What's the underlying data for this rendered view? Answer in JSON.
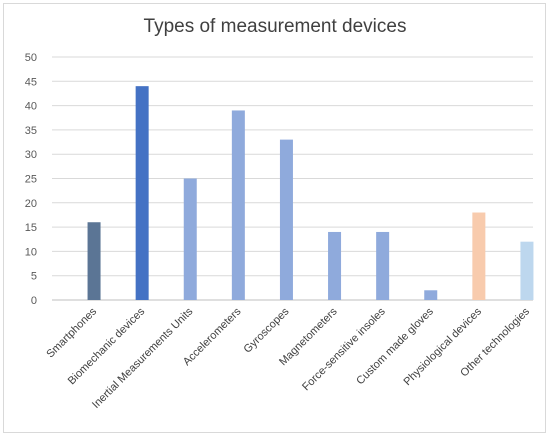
{
  "chart_data": {
    "type": "bar",
    "title": "Types of measurement devices",
    "xlabel": "",
    "ylabel": "",
    "ylim": [
      0,
      50
    ],
    "yticks": [
      0,
      5,
      10,
      15,
      20,
      25,
      30,
      35,
      40,
      45,
      50
    ],
    "grid": true,
    "legend": "none",
    "categories": [
      "Smartphones",
      "Biomechanic devices",
      "Inertial Measurements Units",
      "Accelerometers",
      "Gyroscopes",
      "Magnetometers",
      "Force-sensitive insoles",
      "Custom made gloves",
      "Physiological devices",
      "Other technologies"
    ],
    "values": [
      16,
      44,
      25,
      39,
      33,
      14,
      14,
      2,
      18,
      12
    ],
    "colors": [
      "#5b7595",
      "#4472c4",
      "#8faadc",
      "#8faadc",
      "#8faadc",
      "#8faadc",
      "#8faadc",
      "#8faadc",
      "#f8cbad",
      "#bdd7ee"
    ]
  }
}
